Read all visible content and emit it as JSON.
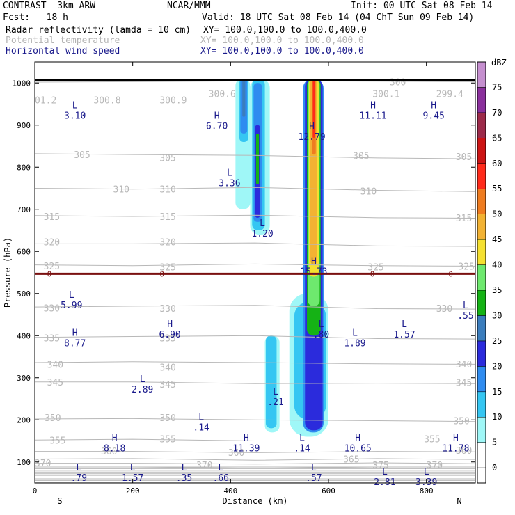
{
  "header": {
    "project": "CONTRAST  3km ARW",
    "org": "NCAR/MMM",
    "init": "Init: 00 UTC Sat 08 Feb 14",
    "fcst": "Fcst:   18 h",
    "valid": "Valid: 18 UTC Sat 08 Feb 14 (04 ChT Sun 09 Feb 14)",
    "field1": "Radar reflectivity (lamda = 10 cm)",
    "field1_xy": "XY= 100.0,100.0 to 100.0,400.0",
    "field2": "Potential temperature",
    "field2_xy": "XY= 100.0,100.0 to 100.0,400.0",
    "field3": "Horizontal wind speed",
    "field3_xy": "XY= 100.0,100.0 to 100.0,400.0"
  },
  "chart_data": {
    "type": "heatmap",
    "xlabel": "Distance (km)",
    "ylabel": "Pressure (hPa)",
    "xlim": [
      0,
      900
    ],
    "ylim": [
      1050,
      50
    ],
    "x_ticks": [
      0,
      200,
      400,
      600,
      800
    ],
    "y_ticks": [
      100,
      200,
      300,
      400,
      500,
      600,
      700,
      800,
      900,
      1000
    ],
    "x_end_labels": {
      "left": "S",
      "right": "N"
    },
    "colorbar": {
      "unit": "dBZ",
      "levels": [
        0,
        5,
        10,
        15,
        20,
        25,
        30,
        35,
        40,
        45,
        50,
        55,
        60,
        65,
        70,
        75
      ],
      "colors": [
        "#ffffff",
        "#9ff7f7",
        "#35c6f2",
        "#2f8cf0",
        "#2b2bdc",
        "#3b7dbd",
        "#15b215",
        "#6ee96e",
        "#f5e030",
        "#f2b233",
        "#ef7c20",
        "#ff2a1a",
        "#cc1414",
        "#9c2a4a",
        "#8a2f9c",
        "#c58fcf"
      ]
    },
    "theta_contours": [
      {
        "label": "300",
        "p": [
          1002,
          1003,
          1005,
          1004,
          1003
        ]
      },
      {
        "label": "305",
        "p": [
          832,
          830,
          828,
          822,
          820
        ]
      },
      {
        "label": "310",
        "p": [
          750,
          748,
          752,
          745,
          742
        ]
      },
      {
        "label": "315",
        "p": [
          685,
          683,
          686,
          680,
          679
        ]
      },
      {
        "label": "320",
        "p": [
          618,
          618,
          620,
          613,
          612
        ]
      },
      {
        "label": "325",
        "p": [
          568,
          566,
          570,
          566,
          565
        ]
      },
      {
        "label": "330",
        "p": [
          468,
          470,
          472,
          464,
          463
        ]
      },
      {
        "label": "335",
        "p": [
          396,
          398,
          400,
          393,
          392
        ]
      },
      {
        "label": "340",
        "p": [
          336,
          338,
          336,
          333,
          332
        ]
      },
      {
        "label": "345",
        "p": [
          290,
          290,
          286,
          287,
          286
        ]
      },
      {
        "label": "350",
        "p": [
          202,
          203,
          200,
          198,
          196
        ]
      },
      {
        "label": "355",
        "p": [
          152,
          154,
          150,
          150,
          150
        ]
      },
      {
        "label": "360",
        "p": [
          125,
          125,
          122,
          125,
          124
        ]
      },
      {
        "label": "365",
        "p": [
          107,
          108,
          104,
          108,
          106
        ]
      },
      {
        "label": "370",
        "p": [
          97,
          97,
          95,
          98,
          96
        ]
      },
      {
        "label": "375",
        "p": [
          88,
          88,
          85,
          88,
          88
        ]
      }
    ],
    "theta_contour_x": [
      0,
      200,
      450,
      700,
      900
    ],
    "theta_label_points": [
      {
        "text": "370",
        "x": 0,
        "p": 98
      },
      {
        "text": "360",
        "x": 135,
        "p": 126
      },
      {
        "text": "355",
        "x": 30,
        "p": 152
      },
      {
        "text": "350",
        "x": 20,
        "p": 205
      },
      {
        "text": "345",
        "x": 25,
        "p": 290
      },
      {
        "text": "340",
        "x": 25,
        "p": 332
      },
      {
        "text": "335",
        "x": 18,
        "p": 395
      },
      {
        "text": "330",
        "x": 18,
        "p": 466
      },
      {
        "text": "325",
        "x": 18,
        "p": 566
      },
      {
        "text": "320",
        "x": 18,
        "p": 623
      },
      {
        "text": "315",
        "x": 18,
        "p": 683
      },
      {
        "text": "310",
        "x": 160,
        "p": 748
      },
      {
        "text": "305",
        "x": 80,
        "p": 830
      },
      {
        "text": "355",
        "x": 255,
        "p": 155
      },
      {
        "text": "350",
        "x": 255,
        "p": 205
      },
      {
        "text": "345",
        "x": 255,
        "p": 285
      },
      {
        "text": "340",
        "x": 255,
        "p": 325
      },
      {
        "text": "335",
        "x": 255,
        "p": 395
      },
      {
        "text": "330",
        "x": 255,
        "p": 465
      },
      {
        "text": "325",
        "x": 255,
        "p": 563
      },
      {
        "text": "320",
        "x": 255,
        "p": 623
      },
      {
        "text": "315",
        "x": 255,
        "p": 683
      },
      {
        "text": "310",
        "x": 255,
        "p": 748
      },
      {
        "text": "305",
        "x": 255,
        "p": 823
      },
      {
        "text": "370",
        "x": 330,
        "p": 93
      },
      {
        "text": "360",
        "x": 395,
        "p": 123
      },
      {
        "text": "375",
        "x": 690,
        "p": 93
      },
      {
        "text": "365",
        "x": 630,
        "p": 107
      },
      {
        "text": "370",
        "x": 800,
        "p": 93
      },
      {
        "text": "360",
        "x": 860,
        "p": 128
      },
      {
        "text": "355",
        "x": 795,
        "p": 155
      },
      {
        "text": "350",
        "x": 855,
        "p": 198
      },
      {
        "text": "345",
        "x": 860,
        "p": 289
      },
      {
        "text": "340",
        "x": 860,
        "p": 333
      },
      {
        "text": "330",
        "x": 820,
        "p": 465
      },
      {
        "text": "325",
        "x": 680,
        "p": 563
      },
      {
        "text": "325",
        "x": 865,
        "p": 565
      },
      {
        "text": "315",
        "x": 860,
        "p": 680
      },
      {
        "text": "310",
        "x": 665,
        "p": 743
      },
      {
        "text": "305",
        "x": 650,
        "p": 828
      },
      {
        "text": "305",
        "x": 860,
        "p": 825
      },
      {
        "text": "300",
        "x": 725,
        "p": 1003
      }
    ],
    "surface_theta_labels": [
      {
        "text": "01.2",
        "x": 0,
        "p": 960
      },
      {
        "text": "300.8",
        "x": 120,
        "p": 960
      },
      {
        "text": "300.9",
        "x": 255,
        "p": 960
      },
      {
        "text": "300.6",
        "x": 355,
        "p": 975
      },
      {
        "text": "300.1",
        "x": 690,
        "p": 975
      },
      {
        "text": "299.4",
        "x": 820,
        "p": 975
      }
    ],
    "zero_isotherm": {
      "label": "0",
      "p": 547,
      "label_x": [
        25,
        255,
        685,
        845
      ]
    },
    "wind_extrema": [
      {
        "type": "L",
        "value": ".79",
        "x": 90,
        "p": 80
      },
      {
        "type": "L",
        "value": "1.57",
        "x": 200,
        "p": 80
      },
      {
        "type": "L",
        "value": ".35",
        "x": 305,
        "p": 80
      },
      {
        "type": "L",
        "value": ".66",
        "x": 380,
        "p": 80
      },
      {
        "type": "L",
        "value": ".57",
        "x": 570,
        "p": 80
      },
      {
        "type": "L",
        "value": "2.81",
        "x": 715,
        "p": 70
      },
      {
        "type": "L",
        "value": "3.39",
        "x": 800,
        "p": 70
      },
      {
        "type": "H",
        "value": "8.18",
        "x": 163,
        "p": 150
      },
      {
        "type": "H",
        "value": "11.39",
        "x": 432,
        "p": 150
      },
      {
        "type": "L",
        "value": ".14",
        "x": 546,
        "p": 150
      },
      {
        "type": "H",
        "value": "10.65",
        "x": 660,
        "p": 150
      },
      {
        "type": "H",
        "value": "11.78",
        "x": 860,
        "p": 150
      },
      {
        "type": "L",
        "value": ".14",
        "x": 340,
        "p": 200
      },
      {
        "type": "L",
        "value": ".21",
        "x": 492,
        "p": 260
      },
      {
        "type": "L",
        "value": "2.89",
        "x": 220,
        "p": 290
      },
      {
        "type": "H",
        "value": "8.77",
        "x": 82,
        "p": 400
      },
      {
        "type": "H",
        "value": "6.90",
        "x": 276,
        "p": 420
      },
      {
        "type": "L",
        "value": ".80",
        "x": 585,
        "p": 420
      },
      {
        "type": "L",
        "value": "1.89",
        "x": 654,
        "p": 400
      },
      {
        "type": "L",
        "value": "1.57",
        "x": 755,
        "p": 420
      },
      {
        "type": "L",
        "value": ".55",
        "x": 880,
        "p": 465
      },
      {
        "type": "L",
        "value": "5.99",
        "x": 75,
        "p": 490
      },
      {
        "type": "H",
        "value": "15.73",
        "x": 570,
        "p": 570
      },
      {
        "type": "L",
        "value": "1.20",
        "x": 465,
        "p": 660
      },
      {
        "type": "L",
        "value": "3.36",
        "x": 398,
        "p": 780
      },
      {
        "type": "H",
        "value": "12.79",
        "x": 566,
        "p": 890
      },
      {
        "type": "H",
        "value": "6.70",
        "x": 372,
        "p": 915
      },
      {
        "type": "L",
        "value": "3.10",
        "x": 82,
        "p": 940
      },
      {
        "type": "H",
        "value": "11.11",
        "x": 691,
        "p": 940
      },
      {
        "type": "H",
        "value": "9.45",
        "x": 815,
        "p": 940
      }
    ],
    "reflectivity_cells": [
      {
        "level": 5,
        "x0": 410,
        "x1": 440,
        "p0": 1010,
        "p1": 700
      },
      {
        "level": 10,
        "x0": 418,
        "x1": 436,
        "p0": 1010,
        "p1": 860
      },
      {
        "level": 15,
        "x0": 420,
        "x1": 434,
        "p0": 1010,
        "p1": 880
      },
      {
        "level": 25,
        "x0": 424,
        "x1": 430,
        "p0": 1010,
        "p1": 920
      },
      {
        "level": 5,
        "x0": 440,
        "x1": 480,
        "p0": 1010,
        "p1": 640
      },
      {
        "level": 10,
        "x0": 444,
        "x1": 470,
        "p0": 1010,
        "p1": 650
      },
      {
        "level": 15,
        "x0": 447,
        "x1": 464,
        "p0": 1000,
        "p1": 670
      },
      {
        "level": 20,
        "x0": 450,
        "x1": 460,
        "p0": 900,
        "p1": 680
      },
      {
        "level": 30,
        "x0": 452,
        "x1": 458,
        "p0": 880,
        "p1": 760
      },
      {
        "level": 5,
        "x0": 520,
        "x1": 600,
        "p0": 500,
        "p1": 160
      },
      {
        "level": 5,
        "x0": 470,
        "x1": 500,
        "p0": 400,
        "p1": 170
      },
      {
        "level": 10,
        "x0": 472,
        "x1": 494,
        "p0": 400,
        "p1": 180
      },
      {
        "level": 10,
        "x0": 530,
        "x1": 595,
        "p0": 480,
        "p1": 200
      },
      {
        "level": 15,
        "x0": 548,
        "x1": 590,
        "p0": 1010,
        "p1": 170
      },
      {
        "level": 20,
        "x0": 552,
        "x1": 588,
        "p0": 1010,
        "p1": 175
      },
      {
        "level": 30,
        "x0": 556,
        "x1": 584,
        "p0": 1010,
        "p1": 400
      },
      {
        "level": 35,
        "x0": 558,
        "x1": 582,
        "p0": 1010,
        "p1": 470
      },
      {
        "level": 40,
        "x0": 560,
        "x1": 580,
        "p0": 1010,
        "p1": 540
      },
      {
        "level": 45,
        "x0": 563,
        "x1": 577,
        "p0": 1010,
        "p1": 570
      },
      {
        "level": 50,
        "x0": 566,
        "x1": 574,
        "p0": 1010,
        "p1": 830
      },
      {
        "level": 55,
        "x0": 568,
        "x1": 572,
        "p0": 1010,
        "p1": 870
      }
    ],
    "grid": false,
    "legend_position": "right"
  },
  "style": {
    "theta_color": "#b8b8b8",
    "wind_text_color": "#1a1a8c",
    "zero_isotherm_color": "#7a1010",
    "ground_color": "#000000"
  }
}
